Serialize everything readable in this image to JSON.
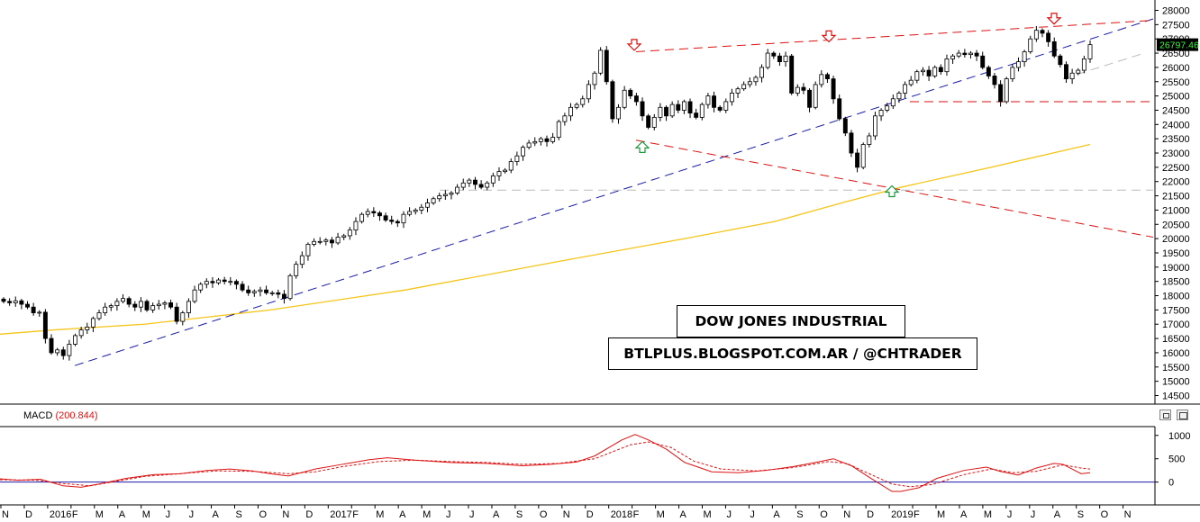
{
  "chart_data": [
    {
      "type": "candlestick",
      "title": "DOW JONES INDUSTRIAL",
      "subtitle": "BTLPLUS.BLOGSPOT.COM.AR / @CHTRADER",
      "ylim": [
        14200,
        28300
      ],
      "y_ticks": [
        14500,
        15000,
        15500,
        16000,
        16500,
        17000,
        17500,
        18000,
        18500,
        19000,
        19500,
        20000,
        20500,
        21000,
        21500,
        22000,
        22500,
        23000,
        23500,
        24000,
        24500,
        25000,
        25500,
        26000,
        26500,
        27000,
        27500,
        28000
      ],
      "last_price": "26797.46",
      "x_tick_labels": [
        "N",
        "D",
        "2016",
        "F",
        "M",
        "A",
        "M",
        "J",
        "J",
        "A",
        "S",
        "O",
        "N",
        "D",
        "2017",
        "F",
        "M",
        "A",
        "M",
        "J",
        "J",
        "A",
        "S",
        "O",
        "N",
        "D",
        "2018",
        "F",
        "M",
        "A",
        "M",
        "J",
        "J",
        "A",
        "S",
        "O",
        "N",
        "D",
        "2019",
        "F",
        "M",
        "A",
        "M",
        "J",
        "J",
        "A",
        "S",
        "O",
        "N"
      ],
      "closes": [
        17800,
        17750,
        17820,
        17700,
        17600,
        17400,
        17420,
        16500,
        16000,
        16100,
        15900,
        16300,
        16600,
        16800,
        16900,
        17200,
        17400,
        17600,
        17650,
        17800,
        17900,
        17700,
        17600,
        17800,
        17500,
        17650,
        17700,
        17750,
        17600,
        17100,
        17400,
        17800,
        18200,
        18400,
        18500,
        18450,
        18550,
        18500,
        18500,
        18400,
        18200,
        18100,
        18150,
        18200,
        18100,
        18100,
        18050,
        17900,
        18700,
        19100,
        19400,
        19800,
        19900,
        19900,
        19950,
        19850,
        20050,
        20100,
        20300,
        20600,
        20850,
        20950,
        20900,
        20800,
        20650,
        20600,
        20550,
        20850,
        20950,
        21000,
        21100,
        21250,
        21400,
        21500,
        21550,
        21600,
        21800,
        21950,
        22050,
        21900,
        21800,
        21950,
        22200,
        22350,
        22400,
        22700,
        22900,
        23200,
        23350,
        23400,
        23500,
        23400,
        23550,
        24100,
        24300,
        24600,
        24700,
        24900,
        25400,
        25800,
        26600,
        25500,
        24200,
        24600,
        25200,
        25000,
        24800,
        24300,
        23900,
        24250,
        24600,
        24300,
        24700,
        24500,
        24800,
        24400,
        24250,
        24700,
        25000,
        24600,
        24500,
        24800,
        25100,
        25250,
        25400,
        25500,
        25650,
        26000,
        26500,
        26400,
        26200,
        26400,
        25100,
        25300,
        25200,
        24600,
        25400,
        25750,
        25600,
        24900,
        24200,
        23700,
        23000,
        22500,
        23300,
        23600,
        24300,
        24500,
        24650,
        24900,
        25100,
        25400,
        25550,
        25850,
        25900,
        25700,
        26000,
        25850,
        26300,
        26400,
        26500,
        26450,
        26500,
        26400,
        26000,
        25700,
        25400,
        24800,
        25600,
        26000,
        26200,
        26550,
        27000,
        27300,
        27200,
        26900,
        26400,
        26100,
        25600,
        25800,
        25900,
        26300,
        26797.46
      ],
      "ma200": [
        [
          0,
          16650
        ],
        [
          60,
          16800
        ],
        [
          160,
          17000
        ],
        [
          300,
          17500
        ],
        [
          450,
          18200
        ],
        [
          620,
          19200
        ],
        [
          760,
          20000
        ],
        [
          860,
          20600
        ],
        [
          940,
          21300
        ],
        [
          1000,
          21800
        ],
        [
          1100,
          22500
        ],
        [
          1210,
          23300
        ]
      ],
      "trendlines": [
        {
          "color": "#1a1aaa",
          "dash": "10,6",
          "from": [
            83,
            15550
          ],
          "to": [
            1280,
            27700
          ]
        },
        {
          "color": "#d11",
          "dash": "10,6",
          "from": [
            706,
            26550
          ],
          "to": [
            1280,
            27650
          ]
        },
        {
          "color": "#d11",
          "dash": "10,6",
          "from": [
            706,
            23450
          ],
          "to": [
            1280,
            20050
          ]
        },
        {
          "color": "#d11",
          "dash": "10,6",
          "from": [
            1010,
            24800
          ],
          "to": [
            1280,
            24800
          ]
        },
        {
          "color": "#bbb",
          "dash": "10,6",
          "from": [
            488,
            21700
          ],
          "to": [
            1280,
            21700
          ]
        },
        {
          "color": "#bbb",
          "dash": "10,6",
          "from": [
            1180,
            25600
          ],
          "to": [
            1270,
            26500
          ]
        }
      ],
      "arrows": [
        {
          "dir": "down",
          "x": 704,
          "price": 26600
        },
        {
          "dir": "down",
          "x": 920,
          "price": 26900
        },
        {
          "dir": "down",
          "x": 1170,
          "price": 27520
        },
        {
          "dir": "up",
          "x": 713,
          "price": 23400
        },
        {
          "dir": "up",
          "x": 990,
          "price": 21850
        }
      ]
    },
    {
      "type": "line",
      "name": "MACD",
      "value_text": "(200.844)",
      "ylim": [
        -450,
        1150
      ],
      "y_ticks": [
        1000,
        500,
        0
      ],
      "macd": [
        [
          0,
          70
        ],
        [
          20,
          40
        ],
        [
          45,
          60
        ],
        [
          70,
          -80
        ],
        [
          90,
          -110
        ],
        [
          110,
          -40
        ],
        [
          140,
          80
        ],
        [
          170,
          160
        ],
        [
          200,
          180
        ],
        [
          230,
          250
        ],
        [
          255,
          280
        ],
        [
          280,
          240
        ],
        [
          300,
          180
        ],
        [
          320,
          130
        ],
        [
          350,
          280
        ],
        [
          380,
          380
        ],
        [
          410,
          480
        ],
        [
          430,
          520
        ],
        [
          460,
          470
        ],
        [
          500,
          420
        ],
        [
          540,
          400
        ],
        [
          580,
          350
        ],
        [
          610,
          380
        ],
        [
          640,
          430
        ],
        [
          660,
          560
        ],
        [
          690,
          900
        ],
        [
          705,
          1020
        ],
        [
          720,
          900
        ],
        [
          740,
          700
        ],
        [
          760,
          420
        ],
        [
          790,
          220
        ],
        [
          820,
          200
        ],
        [
          850,
          250
        ],
        [
          880,
          330
        ],
        [
          910,
          440
        ],
        [
          925,
          500
        ],
        [
          945,
          350
        ],
        [
          965,
          100
        ],
        [
          990,
          -200
        ],
        [
          1000,
          -200
        ],
        [
          1020,
          -120
        ],
        [
          1040,
          80
        ],
        [
          1070,
          250
        ],
        [
          1095,
          320
        ],
        [
          1110,
          230
        ],
        [
          1130,
          150
        ],
        [
          1150,
          300
        ],
        [
          1170,
          400
        ],
        [
          1180,
          380
        ],
        [
          1200,
          180
        ],
        [
          1210,
          200
        ]
      ],
      "signal": [
        [
          0,
          50
        ],
        [
          40,
          40
        ],
        [
          70,
          -30
        ],
        [
          100,
          -80
        ],
        [
          130,
          20
        ],
        [
          160,
          120
        ],
        [
          200,
          180
        ],
        [
          240,
          240
        ],
        [
          280,
          230
        ],
        [
          320,
          180
        ],
        [
          350,
          220
        ],
        [
          380,
          330
        ],
        [
          420,
          440
        ],
        [
          460,
          470
        ],
        [
          500,
          440
        ],
        [
          540,
          420
        ],
        [
          580,
          380
        ],
        [
          620,
          400
        ],
        [
          660,
          500
        ],
        [
          700,
          800
        ],
        [
          720,
          860
        ],
        [
          745,
          740
        ],
        [
          770,
          450
        ],
        [
          800,
          280
        ],
        [
          840,
          240
        ],
        [
          880,
          310
        ],
        [
          920,
          440
        ],
        [
          940,
          400
        ],
        [
          960,
          220
        ],
        [
          990,
          -40
        ],
        [
          1010,
          -100
        ],
        [
          1035,
          -50
        ],
        [
          1070,
          160
        ],
        [
          1100,
          280
        ],
        [
          1125,
          200
        ],
        [
          1150,
          230
        ],
        [
          1180,
          370
        ],
        [
          1200,
          300
        ],
        [
          1210,
          280
        ]
      ]
    }
  ]
}
